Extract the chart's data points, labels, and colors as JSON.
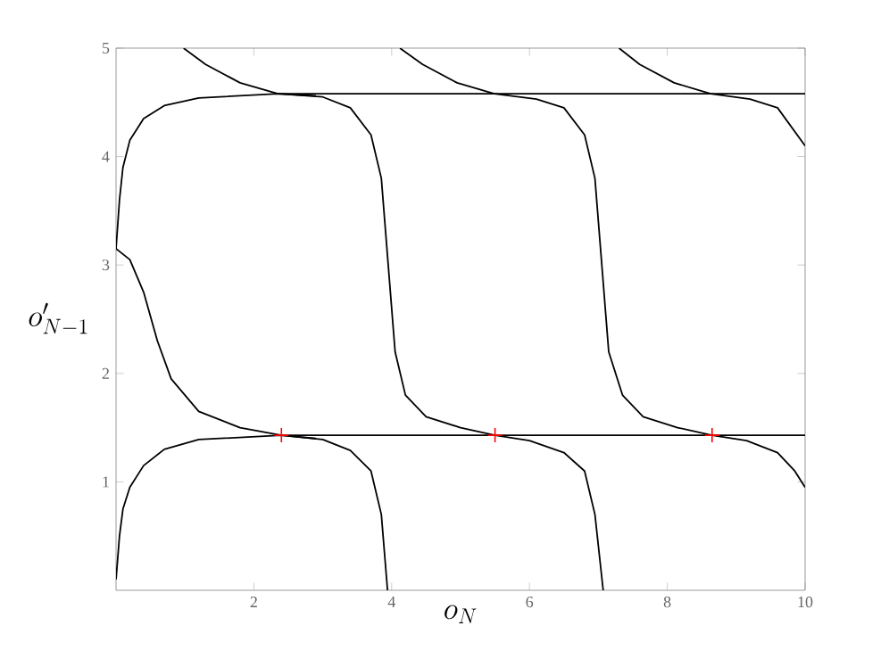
{
  "chart_data": {
    "type": "line",
    "xlabel": "o_N",
    "ylabel": "o'_{N-1}",
    "xlim": [
      0,
      10
    ],
    "ylim": [
      0,
      5
    ],
    "xticks": [
      2,
      4,
      6,
      8,
      10
    ],
    "yticks": [
      1,
      2,
      3,
      4,
      5
    ],
    "series": [
      {
        "color": "#000000",
        "x": [
          0,
          0.05,
          0.1,
          0.2,
          0.4,
          0.7,
          1.2,
          2.35,
          3.0,
          3.4,
          3.7,
          3.85,
          3.95,
          4.05,
          4.2,
          4.5,
          5.0,
          5.5,
          6.0,
          6.5,
          6.8,
          6.95,
          7.07
        ],
        "values": [
          3.15,
          3.6,
          3.9,
          4.15,
          4.35,
          4.47,
          4.54,
          4.58,
          4.55,
          4.45,
          4.2,
          3.8,
          3.0,
          2.2,
          1.8,
          1.6,
          1.5,
          1.43,
          1.38,
          1.27,
          1.1,
          0.7,
          0
        ]
      },
      {
        "color": "#000000",
        "x": [
          0.98,
          1.3,
          1.8,
          2.35,
          2.9
        ],
        "values": [
          5,
          4.85,
          4.68,
          4.58,
          4.56
        ]
      },
      {
        "color": "#000000",
        "x": [
          4.12,
          4.45,
          4.95,
          5.49,
          6.1,
          6.5,
          6.8,
          6.95,
          7.05,
          7.15,
          7.35,
          7.65,
          8.15,
          8.65,
          9.15,
          9.6,
          9.85,
          10
        ],
        "values": [
          5,
          4.85,
          4.68,
          4.58,
          4.53,
          4.45,
          4.2,
          3.8,
          3.0,
          2.2,
          1.8,
          1.6,
          1.5,
          1.43,
          1.38,
          1.27,
          1.1,
          0.95
        ]
      },
      {
        "color": "#000000",
        "x": [
          7.3,
          7.6,
          8.1,
          8.63,
          9.2,
          9.6,
          10
        ],
        "values": [
          5,
          4.85,
          4.68,
          4.58,
          4.53,
          4.45,
          4.1
        ]
      },
      {
        "color": "#000000",
        "x": [
          0,
          0.05,
          0.1,
          0.2,
          0.4,
          0.7,
          1.2,
          2.4,
          3.0,
          3.4,
          3.7,
          3.85,
          3.94
        ],
        "values": [
          0.1,
          0.5,
          0.75,
          0.95,
          1.15,
          1.3,
          1.39,
          1.43,
          1.39,
          1.29,
          1.1,
          0.7,
          0
        ]
      },
      {
        "color": "#000000",
        "x": [
          0,
          0.2,
          0.4,
          0.6,
          0.8,
          1.2,
          1.8,
          2.4,
          2.9
        ],
        "values": [
          3.15,
          3.05,
          2.75,
          2.3,
          1.95,
          1.65,
          1.5,
          1.43,
          1.4
        ]
      },
      {
        "color": "#000000",
        "x": [
          2.35,
          10
        ],
        "values": [
          4.58,
          4.58
        ]
      },
      {
        "color": "#000000",
        "x": [
          2.4,
          10
        ],
        "values": [
          1.43,
          1.43
        ]
      },
      {
        "type": "scatter",
        "marker": "cross",
        "color": "#ff0000",
        "x": [
          2.4,
          5.5,
          8.65
        ],
        "values": [
          1.43,
          1.43,
          1.43
        ]
      }
    ]
  }
}
